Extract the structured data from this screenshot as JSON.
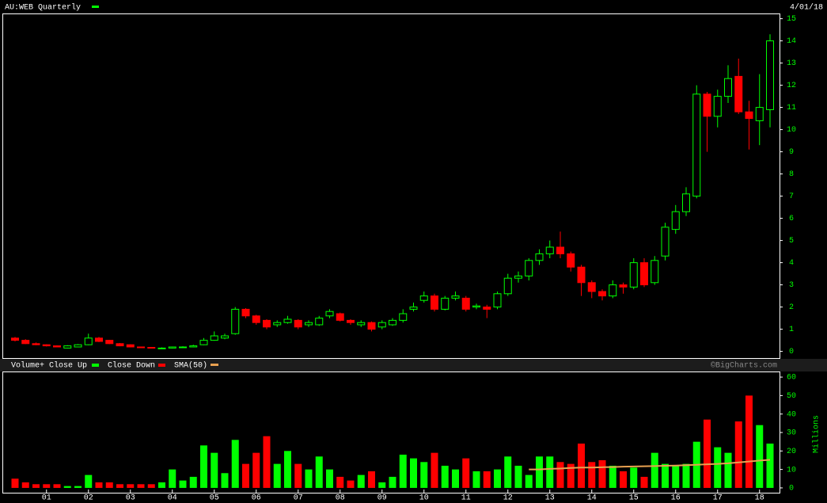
{
  "chart_data": {
    "type": "candlestick",
    "title": "AU:WEB Quarterly",
    "date_label": "4/01/18",
    "credit": "©BigCharts.com",
    "up_color": "#00ff00",
    "down_color": "#ff0000",
    "categories": [
      null,
      null,
      null,
      "01",
      null,
      null,
      null,
      "02",
      null,
      null,
      null,
      "03",
      null,
      null,
      null,
      "04",
      null,
      null,
      null,
      "05",
      null,
      null,
      null,
      "06",
      null,
      null,
      null,
      "07",
      null,
      null,
      null,
      "08",
      null,
      null,
      null,
      "09",
      null,
      null,
      null,
      "10",
      null,
      null,
      null,
      "11",
      null,
      null,
      null,
      "12",
      null,
      null,
      null,
      "13",
      null,
      null,
      null,
      "14",
      null,
      null,
      null,
      "15",
      null,
      null,
      null,
      "16",
      null,
      null,
      null,
      "17",
      null,
      null,
      null,
      "18",
      null
    ],
    "open": [
      0.6,
      0.5,
      0.35,
      0.3,
      0.25,
      0.15,
      0.2,
      0.3,
      0.6,
      0.5,
      0.35,
      0.3,
      0.2,
      0.18,
      0.15,
      0.15,
      0.18,
      0.2,
      0.3,
      0.5,
      0.6,
      0.8,
      1.9,
      1.6,
      1.4,
      1.2,
      1.3,
      1.4,
      1.2,
      1.2,
      1.6,
      1.7,
      1.4,
      1.2,
      1.3,
      1.1,
      1.2,
      1.4,
      1.9,
      2.3,
      2.5,
      1.9,
      2.4,
      2.4,
      2.0,
      2.0,
      2.0,
      2.6,
      3.3,
      3.4,
      4.1,
      4.4,
      4.7,
      4.4,
      3.8,
      3.1,
      2.7,
      2.5,
      3.0,
      2.9,
      4.0,
      3.1,
      4.3,
      5.5,
      6.3,
      7.0,
      11.6,
      10.6,
      11.5,
      12.4,
      10.8,
      10.4,
      10.9
    ],
    "high": [
      0.65,
      0.55,
      0.4,
      0.32,
      0.27,
      0.28,
      0.33,
      0.8,
      0.65,
      0.52,
      0.38,
      0.32,
      0.22,
      0.2,
      0.18,
      0.22,
      0.23,
      0.3,
      0.6,
      0.9,
      0.8,
      2.0,
      1.95,
      1.65,
      1.45,
      1.4,
      1.6,
      1.45,
      1.4,
      1.6,
      1.9,
      1.75,
      1.45,
      1.4,
      1.35,
      1.4,
      1.5,
      1.9,
      2.2,
      2.7,
      2.6,
      2.5,
      2.7,
      2.5,
      2.15,
      2.1,
      2.7,
      3.5,
      3.6,
      4.2,
      4.6,
      5.0,
      5.4,
      4.5,
      3.9,
      3.2,
      2.8,
      3.2,
      3.1,
      4.2,
      4.2,
      4.3,
      5.8,
      6.6,
      7.4,
      12.0,
      11.7,
      11.8,
      12.9,
      13.2,
      11.3,
      12.5,
      14.3
    ],
    "low": [
      0.45,
      0.33,
      0.28,
      0.22,
      0.18,
      0.13,
      0.18,
      0.28,
      0.42,
      0.33,
      0.23,
      0.18,
      0.15,
      0.13,
      0.12,
      0.13,
      0.16,
      0.18,
      0.28,
      0.48,
      0.55,
      0.75,
      1.5,
      1.2,
      1.0,
      1.1,
      1.25,
      1.0,
      1.1,
      1.15,
      1.5,
      1.35,
      1.2,
      1.1,
      0.9,
      1.0,
      1.15,
      1.3,
      1.8,
      2.2,
      1.8,
      1.85,
      2.3,
      1.8,
      1.9,
      1.5,
      1.9,
      2.5,
      3.1,
      3.2,
      3.9,
      4.2,
      4.2,
      3.6,
      2.5,
      2.4,
      2.3,
      2.4,
      2.6,
      2.8,
      2.9,
      3.0,
      4.1,
      5.3,
      6.1,
      6.9,
      9.0,
      10.1,
      11.2,
      10.7,
      9.1,
      9.3,
      10.1
    ],
    "close": [
      0.5,
      0.35,
      0.3,
      0.25,
      0.2,
      0.25,
      0.3,
      0.6,
      0.45,
      0.35,
      0.25,
      0.2,
      0.18,
      0.15,
      0.15,
      0.2,
      0.2,
      0.25,
      0.5,
      0.7,
      0.7,
      1.9,
      1.6,
      1.3,
      1.1,
      1.3,
      1.45,
      1.1,
      1.3,
      1.5,
      1.8,
      1.4,
      1.3,
      1.3,
      1.0,
      1.3,
      1.4,
      1.7,
      2.0,
      2.5,
      1.9,
      2.4,
      2.5,
      1.9,
      2.05,
      1.9,
      2.6,
      3.3,
      3.4,
      4.1,
      4.4,
      4.7,
      4.4,
      3.8,
      3.1,
      2.7,
      2.5,
      3.0,
      2.9,
      4.0,
      3.0,
      4.1,
      5.6,
      6.3,
      7.1,
      11.6,
      10.6,
      11.5,
      12.3,
      10.8,
      10.5,
      11.0,
      14.0
    ],
    "ylim": [
      -0.3,
      15.2
    ],
    "yticks": [
      0,
      1,
      2,
      3,
      4,
      5,
      6,
      7,
      8,
      9,
      10,
      11,
      12,
      13,
      14,
      15
    ],
    "volume": {
      "legend_up": "Volume+ Close Up",
      "legend_down": "Close Down",
      "axis_label": "Millions",
      "values": [
        5,
        3,
        2,
        2,
        2,
        1,
        1,
        7,
        3,
        3,
        2,
        2,
        2,
        2,
        3,
        10,
        4,
        6,
        23,
        19,
        8,
        26,
        13,
        19,
        28,
        13,
        20,
        13,
        10,
        17,
        10,
        6,
        4,
        7,
        9,
        3,
        6,
        18,
        16,
        14,
        19,
        12,
        10,
        16,
        9,
        9,
        10,
        17,
        12,
        7,
        17,
        17,
        14,
        13,
        24,
        14,
        15,
        12,
        9,
        11,
        6,
        19,
        13,
        12,
        13,
        25,
        37,
        22,
        19,
        36,
        50,
        34,
        24
      ],
      "ylim": [
        -2.6,
        62.6
      ],
      "yticks": [
        0,
        10,
        20,
        30,
        40,
        50,
        60
      ]
    },
    "sma": {
      "name": "SMA(50)",
      "color": "#e8a050",
      "values": [
        null,
        null,
        null,
        null,
        null,
        null,
        null,
        null,
        null,
        null,
        null,
        null,
        null,
        null,
        null,
        null,
        null,
        null,
        null,
        null,
        null,
        null,
        null,
        null,
        null,
        null,
        null,
        null,
        null,
        null,
        null,
        null,
        null,
        null,
        null,
        null,
        null,
        null,
        null,
        null,
        null,
        null,
        null,
        null,
        null,
        null,
        null,
        null,
        null,
        10,
        10,
        10.3,
        10.5,
        10.8,
        11,
        11,
        11.2,
        11.3,
        11.5,
        11.6,
        11.7,
        11.8,
        12,
        12.1,
        12.3,
        12.5,
        12.8,
        13,
        13.3,
        13.8,
        14.3,
        14.8,
        15.2
      ]
    }
  }
}
